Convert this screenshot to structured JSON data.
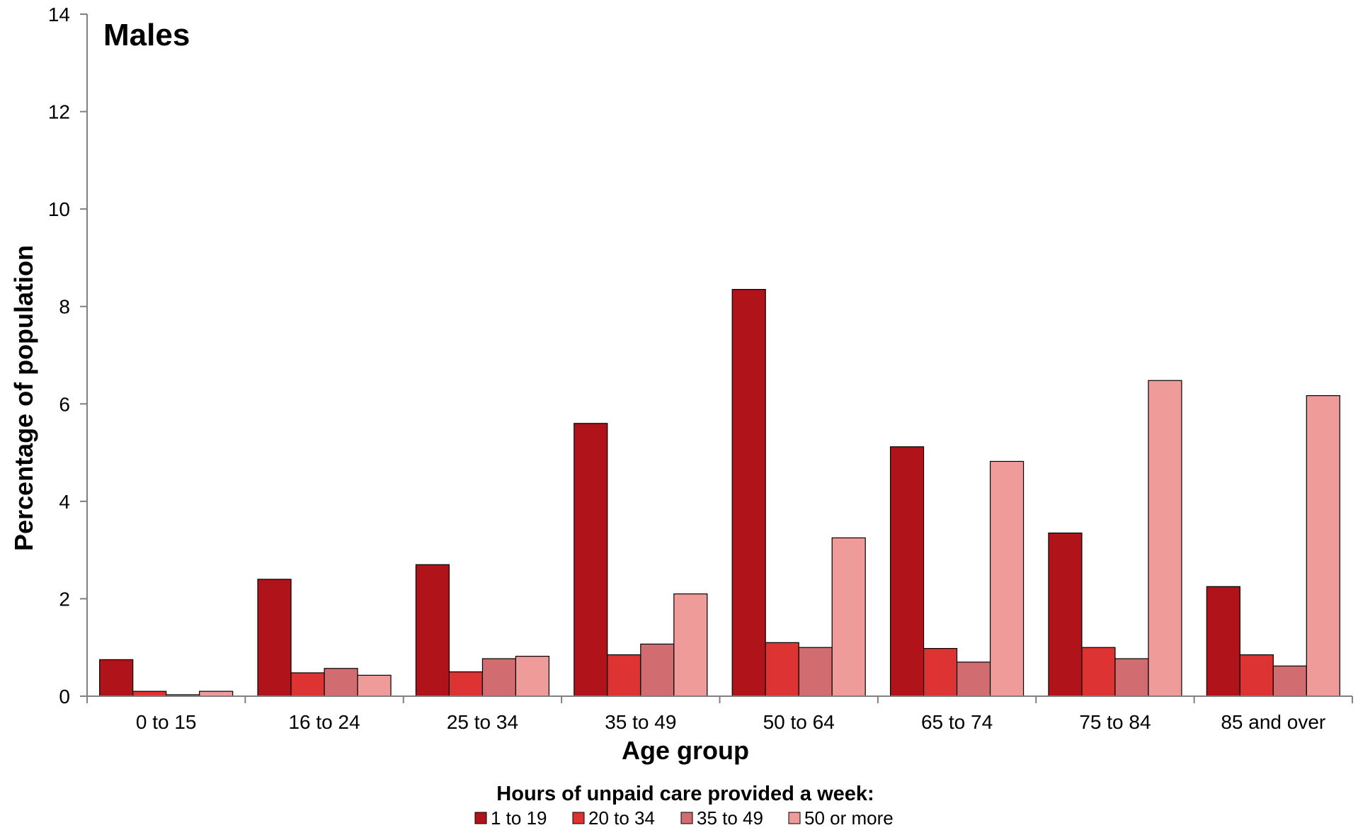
{
  "chart_data": {
    "type": "bar",
    "title": "Males",
    "xlabel": "Age group",
    "ylabel": "Percentage of population",
    "ylim": [
      0,
      14
    ],
    "yticks": [
      0,
      2,
      4,
      6,
      8,
      10,
      12,
      14
    ],
    "grid": false,
    "legend": {
      "title": "Hours of unpaid care provided a week:",
      "placement": "bottom"
    },
    "categories": [
      "0 to 15",
      "16 to 24",
      "25 to 34",
      "35 to 49",
      "50 to 64",
      "65 to 74",
      "75 to 84",
      "85 and over"
    ],
    "series": [
      {
        "name": "1 to 19",
        "color": "#B0141A",
        "values": [
          0.75,
          2.4,
          2.7,
          5.6,
          8.35,
          5.12,
          3.35,
          2.25
        ]
      },
      {
        "name": "20 to 34",
        "color": "#DD3333",
        "values": [
          0.1,
          0.48,
          0.5,
          0.85,
          1.1,
          0.98,
          1.0,
          0.85
        ]
      },
      {
        "name": "35 to 49",
        "color": "#D16D70",
        "values": [
          0.03,
          0.57,
          0.77,
          1.07,
          1.0,
          0.7,
          0.77,
          0.62
        ]
      },
      {
        "name": "50 or more",
        "color": "#EF9B9A",
        "values": [
          0.1,
          0.43,
          0.82,
          2.1,
          3.25,
          4.82,
          6.48,
          6.17
        ]
      }
    ]
  }
}
